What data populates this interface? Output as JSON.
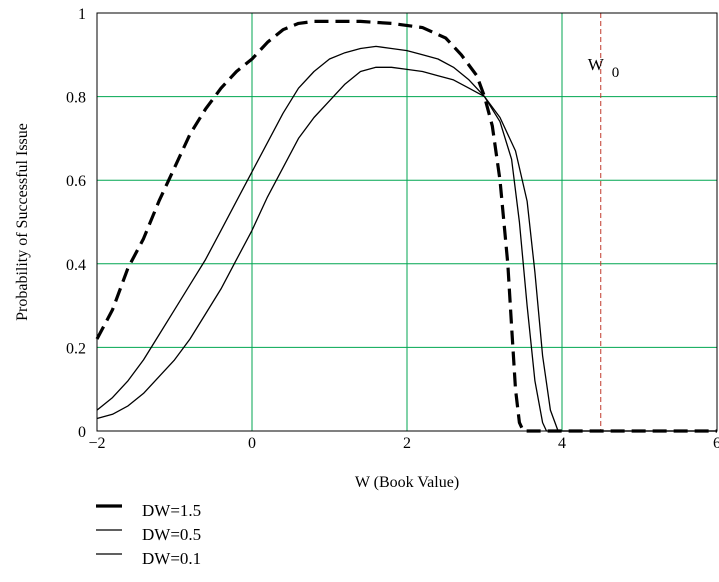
{
  "chart_data": {
    "type": "line",
    "xlabel": "W  (Book Value)",
    "ylabel": "Probability of Successful Issue",
    "xlim": [
      -2,
      6
    ],
    "ylim": [
      0,
      1
    ],
    "xticks": [
      -2,
      0,
      2,
      4,
      6
    ],
    "yticks": [
      0,
      0.2,
      0.4,
      0.6,
      0.8,
      1
    ],
    "xtick_labels": [
      "−2",
      "0",
      "2",
      "4",
      "6"
    ],
    "ytick_labels": [
      "0",
      "0.2",
      "0.4",
      "0.6",
      "0.8",
      "1"
    ],
    "grid": true,
    "grid_color": "#00a651",
    "legend_position": "below-left",
    "annotation": {
      "label": "W",
      "subscript": "0",
      "x": 4.5,
      "color": "#c0392b"
    },
    "series": [
      {
        "name": "DW=1.5",
        "style": "dashed",
        "points": [
          [
            -2.0,
            0.22
          ],
          [
            -1.8,
            0.29
          ],
          [
            -1.6,
            0.39
          ],
          [
            -1.4,
            0.46
          ],
          [
            -1.2,
            0.55
          ],
          [
            -1.0,
            0.63
          ],
          [
            -0.8,
            0.71
          ],
          [
            -0.6,
            0.77
          ],
          [
            -0.4,
            0.82
          ],
          [
            -0.2,
            0.86
          ],
          [
            0.0,
            0.89
          ],
          [
            0.2,
            0.93
          ],
          [
            0.4,
            0.96
          ],
          [
            0.6,
            0.975
          ],
          [
            0.8,
            0.98
          ],
          [
            1.0,
            0.98
          ],
          [
            1.4,
            0.98
          ],
          [
            1.8,
            0.975
          ],
          [
            2.2,
            0.965
          ],
          [
            2.5,
            0.94
          ],
          [
            2.7,
            0.9
          ],
          [
            2.9,
            0.85
          ],
          [
            3.0,
            0.8
          ],
          [
            3.1,
            0.73
          ],
          [
            3.2,
            0.6
          ],
          [
            3.3,
            0.4
          ],
          [
            3.35,
            0.25
          ],
          [
            3.4,
            0.1
          ],
          [
            3.45,
            0.02
          ],
          [
            3.5,
            0.0
          ],
          [
            6.0,
            0.0
          ]
        ]
      },
      {
        "name": "DW=0.5",
        "style": "solid",
        "points": [
          [
            -2.0,
            0.05
          ],
          [
            -1.8,
            0.08
          ],
          [
            -1.6,
            0.12
          ],
          [
            -1.4,
            0.17
          ],
          [
            -1.2,
            0.23
          ],
          [
            -1.0,
            0.29
          ],
          [
            -0.8,
            0.35
          ],
          [
            -0.6,
            0.41
          ],
          [
            -0.4,
            0.48
          ],
          [
            -0.2,
            0.55
          ],
          [
            0.0,
            0.62
          ],
          [
            0.2,
            0.69
          ],
          [
            0.4,
            0.76
          ],
          [
            0.6,
            0.82
          ],
          [
            0.8,
            0.86
          ],
          [
            1.0,
            0.89
          ],
          [
            1.2,
            0.905
          ],
          [
            1.4,
            0.915
          ],
          [
            1.6,
            0.92
          ],
          [
            1.8,
            0.915
          ],
          [
            2.0,
            0.91
          ],
          [
            2.2,
            0.9
          ],
          [
            2.4,
            0.89
          ],
          [
            2.6,
            0.87
          ],
          [
            2.8,
            0.84
          ],
          [
            3.0,
            0.8
          ],
          [
            3.2,
            0.74
          ],
          [
            3.35,
            0.65
          ],
          [
            3.45,
            0.5
          ],
          [
            3.55,
            0.3
          ],
          [
            3.65,
            0.12
          ],
          [
            3.75,
            0.02
          ],
          [
            3.8,
            0.0
          ],
          [
            6.0,
            0.0
          ]
        ]
      },
      {
        "name": "DW=0.1",
        "style": "solid",
        "points": [
          [
            -2.0,
            0.03
          ],
          [
            -1.8,
            0.04
          ],
          [
            -1.6,
            0.06
          ],
          [
            -1.4,
            0.09
          ],
          [
            -1.2,
            0.13
          ],
          [
            -1.0,
            0.17
          ],
          [
            -0.8,
            0.22
          ],
          [
            -0.6,
            0.28
          ],
          [
            -0.4,
            0.34
          ],
          [
            -0.2,
            0.41
          ],
          [
            0.0,
            0.48
          ],
          [
            0.2,
            0.56
          ],
          [
            0.4,
            0.63
          ],
          [
            0.6,
            0.7
          ],
          [
            0.8,
            0.75
          ],
          [
            1.0,
            0.79
          ],
          [
            1.2,
            0.83
          ],
          [
            1.4,
            0.86
          ],
          [
            1.6,
            0.87
          ],
          [
            1.8,
            0.87
          ],
          [
            2.0,
            0.865
          ],
          [
            2.2,
            0.86
          ],
          [
            2.4,
            0.85
          ],
          [
            2.6,
            0.84
          ],
          [
            2.8,
            0.82
          ],
          [
            3.0,
            0.8
          ],
          [
            3.2,
            0.75
          ],
          [
            3.4,
            0.67
          ],
          [
            3.55,
            0.55
          ],
          [
            3.65,
            0.38
          ],
          [
            3.75,
            0.18
          ],
          [
            3.85,
            0.05
          ],
          [
            3.95,
            0.0
          ],
          [
            6.0,
            0.0
          ]
        ]
      }
    ]
  }
}
